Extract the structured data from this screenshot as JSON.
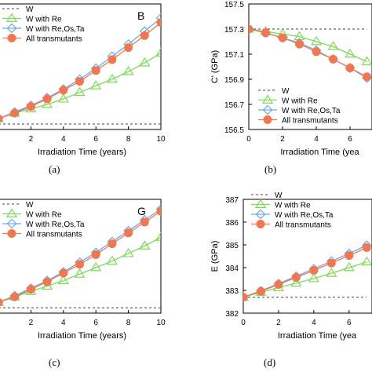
{
  "figure": {
    "captions": [
      "(a)",
      "(b)",
      "(c)",
      "(d)"
    ]
  },
  "colors": {
    "W": "#404040",
    "W with Re": "#7ed957",
    "W with Re,Os,Ta": "#6fa8e6",
    "All transmutants": "#f07850"
  },
  "chart_data": [
    {
      "type": "line",
      "panel_letter": "B",
      "xlabel": "Irradiation Time (years)",
      "ylabel": "",
      "xlim": [
        0,
        10
      ],
      "xticks": [
        2,
        4,
        6,
        8,
        10
      ],
      "yticks": [],
      "legend": "top-left",
      "x": [
        0,
        1,
        2,
        3,
        4,
        5,
        6,
        7,
        8,
        9,
        10
      ],
      "series": [
        {
          "name": "W",
          "style": "dashed",
          "values": [
            0.75,
            0.75,
            0.75,
            0.75,
            0.75,
            0.75,
            0.75,
            0.75,
            0.75,
            0.75,
            0.75
          ]
        },
        {
          "name": "W with Re",
          "marker": "triangle",
          "values": [
            0.8,
            0.85,
            0.89,
            0.93,
            0.98,
            1.04,
            1.1,
            1.16,
            1.23,
            1.31,
            1.4
          ]
        },
        {
          "name": "W with Re,Os,Ta",
          "marker": "diamond",
          "values": [
            0.8,
            0.86,
            0.92,
            0.99,
            1.07,
            1.16,
            1.26,
            1.37,
            1.48,
            1.6,
            1.72
          ]
        },
        {
          "name": "All transmutants",
          "marker": "circle",
          "values": [
            0.8,
            0.85,
            0.91,
            0.98,
            1.06,
            1.14,
            1.24,
            1.34,
            1.45,
            1.56,
            1.68
          ]
        }
      ]
    },
    {
      "type": "line",
      "panel_letter": "",
      "xlabel": "Irradiation Time (yea",
      "ylabel": "C' (GPa)",
      "xlim": [
        0,
        7.3
      ],
      "ylim": [
        156.5,
        157.5
      ],
      "xticks": [
        0,
        2,
        4,
        6
      ],
      "yticks": [
        156.5,
        156.7,
        156.9,
        157.1,
        157.3,
        157.5
      ],
      "legend": "bottom-left",
      "x": [
        0,
        1,
        2,
        3,
        4,
        5,
        6,
        7
      ],
      "series": [
        {
          "name": "W",
          "style": "dashed",
          "values": [
            157.3,
            157.3,
            157.3,
            157.3,
            157.3,
            157.3,
            157.3,
            157.3
          ]
        },
        {
          "name": "W with Re",
          "marker": "triangle",
          "values": [
            157.3,
            157.28,
            157.26,
            157.24,
            157.2,
            157.16,
            157.1,
            157.04
          ]
        },
        {
          "name": "W with Re,Os,Ta",
          "marker": "diamond",
          "values": [
            157.3,
            157.27,
            157.23,
            157.19,
            157.13,
            157.06,
            156.99,
            156.91
          ]
        },
        {
          "name": "All transmutants",
          "marker": "circle",
          "values": [
            157.3,
            157.27,
            157.23,
            157.18,
            157.12,
            157.06,
            156.99,
            156.92
          ]
        }
      ]
    },
    {
      "type": "line",
      "panel_letter": "G",
      "xlabel": "Irradiation Time (years)",
      "ylabel": "",
      "xlim": [
        0,
        10
      ],
      "xticks": [
        2,
        4,
        6,
        8,
        10
      ],
      "yticks": [],
      "legend": "top-left",
      "x": [
        0,
        1,
        2,
        3,
        4,
        5,
        6,
        7,
        8,
        9,
        10
      ],
      "series": [
        {
          "name": "W",
          "style": "dashed",
          "values": [
            0.75,
            0.75,
            0.75,
            0.75,
            0.75,
            0.75,
            0.75,
            0.75,
            0.75,
            0.75,
            0.75
          ]
        },
        {
          "name": "W with Re",
          "marker": "triangle",
          "values": [
            0.8,
            0.85,
            0.9,
            0.95,
            1.0,
            1.06,
            1.12,
            1.18,
            1.25,
            1.32,
            1.4
          ]
        },
        {
          "name": "W with Re,Os,Ta",
          "marker": "diamond",
          "values": [
            0.8,
            0.86,
            0.93,
            1.0,
            1.08,
            1.17,
            1.26,
            1.36,
            1.46,
            1.56,
            1.66
          ]
        },
        {
          "name": "All transmutants",
          "marker": "circle",
          "values": [
            0.8,
            0.85,
            0.92,
            0.99,
            1.07,
            1.15,
            1.24,
            1.34,
            1.44,
            1.54,
            1.64
          ]
        }
      ]
    },
    {
      "type": "line",
      "panel_letter": "",
      "xlabel": "Irradiation Time (yea",
      "ylabel": "E (GPa)",
      "xlim": [
        0,
        7.3
      ],
      "ylim": [
        382,
        387
      ],
      "xticks": [
        0,
        2,
        4,
        6
      ],
      "yticks": [
        382,
        383,
        384,
        385,
        386,
        387
      ],
      "legend": "top-left",
      "x": [
        0,
        1,
        2,
        3,
        4,
        5,
        6,
        7
      ],
      "series": [
        {
          "name": "W",
          "style": "dashed",
          "values": [
            382.7,
            382.7,
            382.7,
            382.7,
            382.7,
            382.7,
            382.7,
            382.7
          ]
        },
        {
          "name": "W with Re",
          "marker": "triangle",
          "values": [
            382.7,
            382.92,
            383.12,
            383.32,
            383.52,
            383.75,
            384.0,
            384.25
          ]
        },
        {
          "name": "W with Re,Os,Ta",
          "marker": "diamond",
          "values": [
            382.7,
            382.98,
            383.3,
            383.62,
            383.95,
            384.28,
            384.62,
            384.98
          ]
        },
        {
          "name": "All transmutants",
          "marker": "circle",
          "values": [
            382.7,
            382.96,
            383.26,
            383.57,
            383.88,
            384.2,
            384.53,
            384.88
          ]
        }
      ]
    }
  ]
}
